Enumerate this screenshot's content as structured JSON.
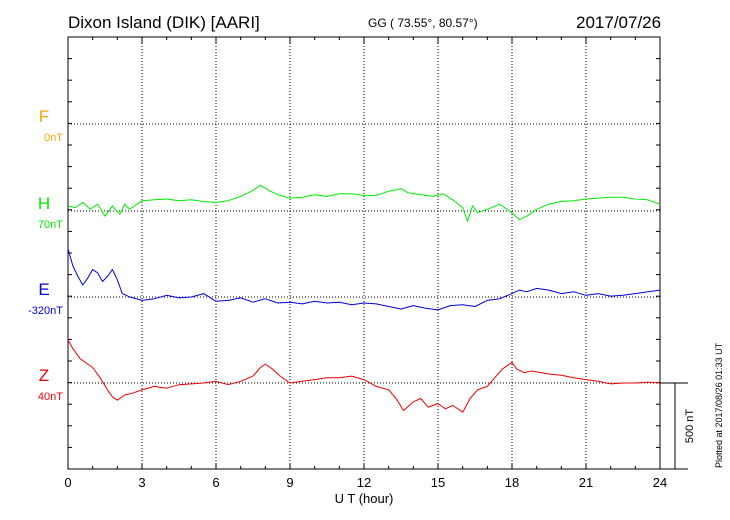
{
  "header": {
    "title": "Dixon Island (DIK)  [AARI]",
    "coordinates": "GG ( 73.55°,  80.57°)",
    "date": "2017/07/26"
  },
  "footer": {
    "plotted": "Plotted at 2017/08/26 01:33 UT"
  },
  "chart_data": {
    "type": "line",
    "title": "Dixon Island (DIK)  [AARI]",
    "xlabel": "U T (hour)",
    "xlim": [
      0,
      24
    ],
    "xticks": [
      "0",
      "3",
      "6",
      "9",
      "12",
      "15",
      "18",
      "21",
      "24"
    ],
    "grid": true,
    "y_units": "nT",
    "scale_bar": {
      "label": "500 nT",
      "value": 500
    },
    "series": [
      {
        "name": "F",
        "baseline_label": "0nT",
        "color": "#f5a500",
        "x": [],
        "y": []
      },
      {
        "name": "H",
        "baseline_label": "70nT",
        "color": "#00ee00",
        "x": [
          0,
          0.3,
          0.6,
          0.9,
          1.2,
          1.5,
          1.8,
          2.1,
          2.3,
          2.5,
          3,
          3.5,
          4,
          4.5,
          5,
          5.5,
          6,
          6.5,
          7,
          7.5,
          7.8,
          8.2,
          8.6,
          9,
          9.5,
          10,
          10.5,
          11,
          11.5,
          12,
          12.5,
          13,
          13.5,
          13.8,
          14.3,
          14.8,
          15.2,
          15.6,
          16,
          16.2,
          16.4,
          16.6,
          17,
          17.5,
          18,
          18.3,
          18.6,
          19,
          19.5,
          20,
          20.5,
          21,
          21.5,
          22,
          22.5,
          23,
          23.5,
          24
        ],
        "y": [
          30,
          20,
          50,
          10,
          40,
          -30,
          30,
          -20,
          40,
          10,
          60,
          65,
          70,
          60,
          65,
          55,
          50,
          60,
          85,
          120,
          150,
          115,
          90,
          75,
          80,
          95,
          85,
          100,
          100,
          90,
          90,
          115,
          130,
          105,
          95,
          85,
          100,
          65,
          20,
          -60,
          30,
          -10,
          10,
          40,
          -10,
          -50,
          -30,
          10,
          40,
          55,
          60,
          70,
          75,
          80,
          80,
          70,
          65,
          40
        ]
      },
      {
        "name": "E",
        "baseline_label": "-320nT",
        "color": "#0000dd",
        "x": [
          0,
          0.2,
          0.4,
          0.6,
          0.8,
          1,
          1.2,
          1.4,
          1.6,
          1.8,
          2,
          2.2,
          2.5,
          3,
          3.5,
          4,
          4.5,
          5,
          5.5,
          6,
          6.5,
          7,
          7.5,
          8,
          8.5,
          9,
          9.5,
          10,
          10.5,
          11,
          11.5,
          12,
          12.5,
          13,
          13.5,
          14,
          14.5,
          15,
          15.5,
          16,
          16.5,
          17,
          17.5,
          18,
          18.3,
          18.6,
          19,
          19.5,
          20,
          20.5,
          21,
          21.5,
          22,
          22.5,
          23,
          23.5,
          24
        ],
        "y": [
          280,
          180,
          120,
          70,
          110,
          160,
          140,
          90,
          120,
          160,
          100,
          20,
          0,
          -20,
          -10,
          10,
          -5,
          0,
          20,
          -25,
          -20,
          -5,
          -30,
          -10,
          -35,
          -30,
          -40,
          -25,
          -35,
          -30,
          -45,
          -35,
          -40,
          -55,
          -70,
          -50,
          -65,
          -75,
          -50,
          -45,
          -55,
          -20,
          -10,
          20,
          40,
          30,
          50,
          40,
          20,
          30,
          10,
          20,
          5,
          10,
          20,
          30,
          40
        ]
      },
      {
        "name": "Z",
        "baseline_label": "40nT",
        "color": "#ee0000",
        "x": [
          0,
          0.2,
          0.5,
          0.8,
          1,
          1.3,
          1.6,
          1.8,
          2,
          2.3,
          2.6,
          3,
          3.5,
          4,
          4.5,
          5,
          5.5,
          6,
          6.5,
          7,
          7.5,
          7.8,
          8,
          8.3,
          8.6,
          9,
          9.5,
          10,
          10.5,
          11,
          11.5,
          12,
          12.5,
          13,
          13.3,
          13.6,
          14,
          14.3,
          14.6,
          15,
          15.3,
          15.6,
          16,
          16.3,
          16.6,
          17,
          17.3,
          17.6,
          18,
          18.2,
          18.5,
          18.8,
          19.2,
          19.6,
          20,
          20.5,
          21,
          21.5,
          22,
          22.5,
          23,
          23.5,
          24
        ],
        "y": [
          250,
          200,
          140,
          110,
          90,
          30,
          -40,
          -80,
          -100,
          -70,
          -60,
          -40,
          -20,
          -30,
          -10,
          -5,
          0,
          10,
          -10,
          10,
          40,
          90,
          110,
          80,
          40,
          0,
          10,
          20,
          30,
          30,
          40,
          20,
          -20,
          -40,
          -90,
          -160,
          -110,
          -90,
          -140,
          -120,
          -150,
          -130,
          -170,
          -90,
          -40,
          -20,
          30,
          80,
          120,
          80,
          60,
          70,
          60,
          50,
          45,
          30,
          20,
          10,
          -5,
          0,
          0,
          5,
          0
        ]
      }
    ]
  }
}
